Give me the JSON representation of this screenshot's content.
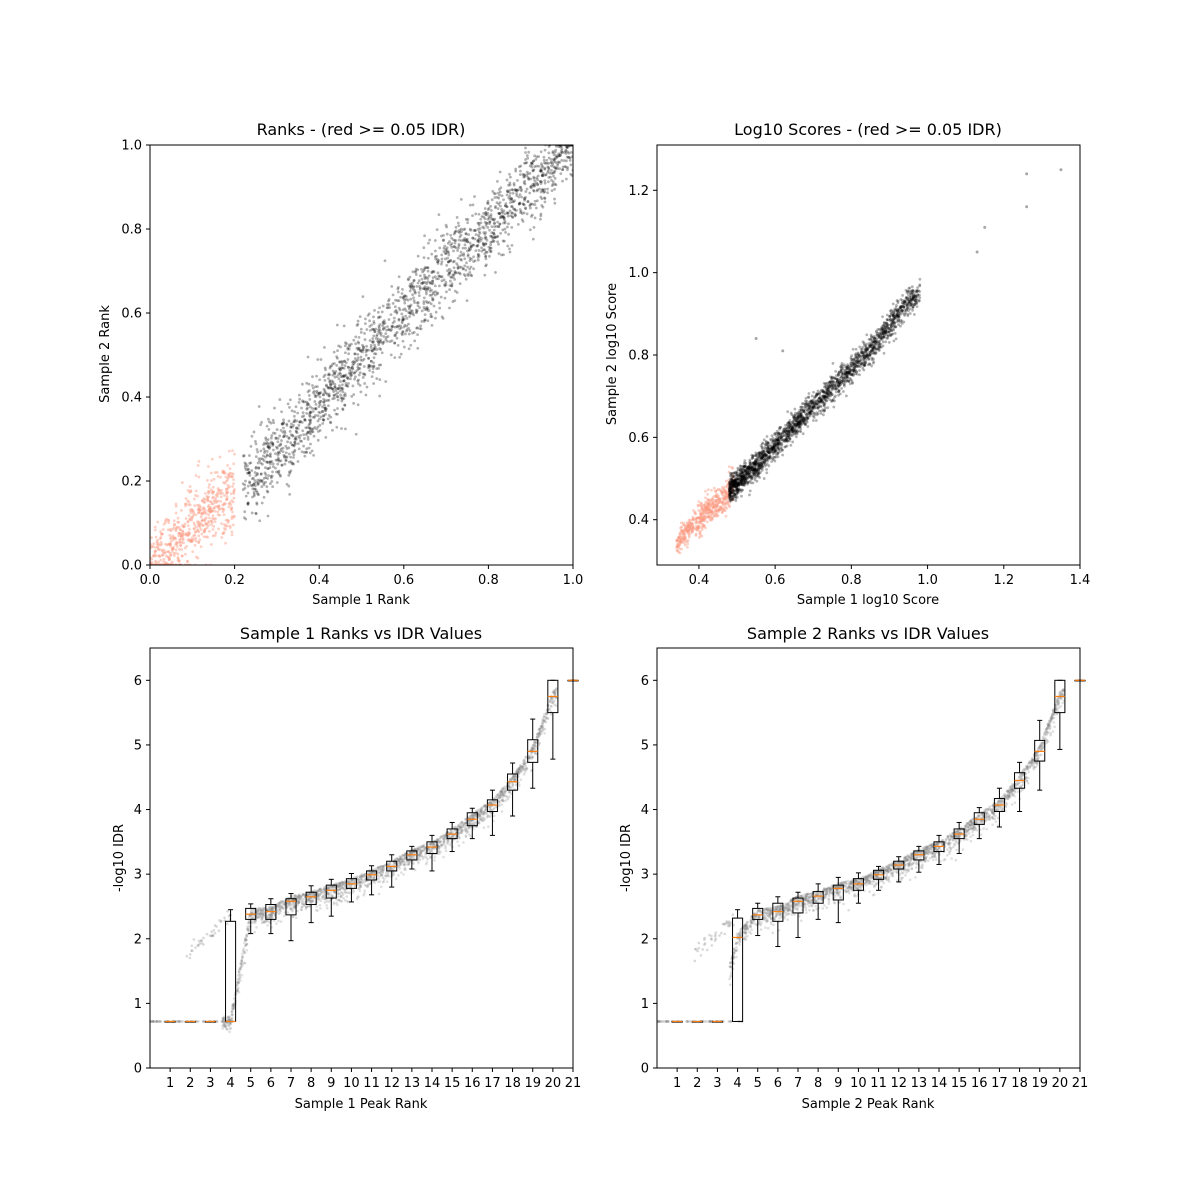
{
  "figure": {
    "background": "#ffffff",
    "colors": {
      "pass_points": "#000000",
      "fail_points": "#fb9a80",
      "box_median": "#ff7f0e",
      "box_stroke": "#000000",
      "idr_points": "#808080"
    }
  },
  "chart_data": [
    {
      "type": "scatter",
      "title": "Ranks - (red >= 0.05 IDR)",
      "xlabel": "Sample 1 Rank",
      "ylabel": "Sample 2 Rank",
      "xlim": [
        0.0,
        1.0
      ],
      "ylim": [
        0.0,
        1.0
      ],
      "xticks": [
        "0.0",
        "0.2",
        "0.4",
        "0.6",
        "0.8",
        "1.0"
      ],
      "yticks": [
        "0.0",
        "0.2",
        "0.4",
        "0.6",
        "0.8",
        "1.0"
      ],
      "grid": false,
      "series": [
        {
          "color": "#000000",
          "points": [
            [
              0.22,
              0.18
            ],
            [
              0.3,
              0.27
            ],
            [
              0.4,
              0.38
            ],
            [
              0.5,
              0.5
            ],
            [
              0.6,
              0.6
            ],
            [
              0.7,
              0.71
            ],
            [
              0.8,
              0.8
            ],
            [
              0.9,
              0.9
            ],
            [
              1.0,
              1.0
            ]
          ]
        },
        {
          "color": "#fb9a80",
          "points": [
            [
              0.0,
              0.0
            ],
            [
              0.05,
              0.04
            ],
            [
              0.1,
              0.1
            ],
            [
              0.15,
              0.14
            ],
            [
              0.2,
              0.17
            ]
          ]
        }
      ]
    },
    {
      "type": "scatter",
      "title": "Log10 Scores - (red >= 0.05 IDR)",
      "xlabel": "Sample 1 log10 Score",
      "ylabel": "Sample 2 log10 Score",
      "xlim": [
        0.29,
        1.4
      ],
      "ylim": [
        0.29,
        1.31
      ],
      "xticks": [
        "0.4",
        "0.6",
        "0.8",
        "1.0",
        "1.2",
        "1.4"
      ],
      "yticks": [
        "0.4",
        "0.6",
        "0.8",
        "1.0",
        "1.2"
      ],
      "grid": false,
      "series": [
        {
          "color": "#000000",
          "points": [
            [
              0.48,
              0.47
            ],
            [
              0.55,
              0.53
            ],
            [
              0.65,
              0.63
            ],
            [
              0.75,
              0.72
            ],
            [
              0.85,
              0.81
            ],
            [
              0.95,
              0.93
            ],
            [
              1.0,
              0.96
            ],
            [
              1.26,
              1.24
            ],
            [
              1.35,
              1.26
            ]
          ]
        },
        {
          "color": "#fb9a80",
          "points": [
            [
              0.34,
              0.34
            ],
            [
              0.38,
              0.38
            ],
            [
              0.42,
              0.42
            ],
            [
              0.46,
              0.45
            ],
            [
              0.49,
              0.48
            ]
          ]
        }
      ]
    },
    {
      "type": "box",
      "title": "Sample 1 Ranks vs IDR Values",
      "xlabel": "Sample 1 Peak Rank",
      "ylabel": "-log10 IDR",
      "xlim": [
        0,
        21
      ],
      "ylim": [
        0,
        6.5
      ],
      "xticks": [
        "1",
        "2",
        "3",
        "4",
        "5",
        "6",
        "7",
        "8",
        "9",
        "10",
        "11",
        "12",
        "13",
        "14",
        "15",
        "16",
        "17",
        "18",
        "19",
        "20",
        "21"
      ],
      "yticks": [
        "0",
        "1",
        "2",
        "3",
        "4",
        "5",
        "6"
      ],
      "grid": false,
      "boxes": [
        {
          "pos": 1,
          "whislo": 0.72,
          "q1": 0.72,
          "med": 0.72,
          "q3": 0.72,
          "whishi": 0.72
        },
        {
          "pos": 2,
          "whislo": 0.72,
          "q1": 0.72,
          "med": 0.72,
          "q3": 0.72,
          "whishi": 0.72
        },
        {
          "pos": 3,
          "whislo": 0.72,
          "q1": 0.72,
          "med": 0.72,
          "q3": 0.72,
          "whishi": 0.72
        },
        {
          "pos": 4,
          "whislo": 0.72,
          "q1": 0.72,
          "med": 0.72,
          "q3": 2.27,
          "whishi": 2.45
        },
        {
          "pos": 5,
          "whislo": 2.08,
          "q1": 2.3,
          "med": 2.38,
          "q3": 2.47,
          "whishi": 2.54
        },
        {
          "pos": 6,
          "whislo": 2.08,
          "q1": 2.3,
          "med": 2.42,
          "q3": 2.53,
          "whishi": 2.62
        },
        {
          "pos": 7,
          "whislo": 1.97,
          "q1": 2.37,
          "med": 2.58,
          "q3": 2.62,
          "whishi": 2.7
        },
        {
          "pos": 8,
          "whislo": 2.25,
          "q1": 2.53,
          "med": 2.65,
          "q3": 2.72,
          "whishi": 2.82
        },
        {
          "pos": 9,
          "whislo": 2.35,
          "q1": 2.63,
          "med": 2.75,
          "q3": 2.83,
          "whishi": 2.92
        },
        {
          "pos": 10,
          "whislo": 2.57,
          "q1": 2.78,
          "med": 2.85,
          "q3": 2.93,
          "whishi": 3.01
        },
        {
          "pos": 11,
          "whislo": 2.68,
          "q1": 2.91,
          "med": 2.99,
          "q3": 3.05,
          "whishi": 3.13
        },
        {
          "pos": 12,
          "whislo": 2.8,
          "q1": 3.05,
          "med": 3.12,
          "q3": 3.2,
          "whishi": 3.3
        },
        {
          "pos": 13,
          "whislo": 3.08,
          "q1": 3.22,
          "med": 3.3,
          "q3": 3.36,
          "whishi": 3.43
        },
        {
          "pos": 14,
          "whislo": 3.05,
          "q1": 3.32,
          "med": 3.42,
          "q3": 3.5,
          "whishi": 3.6
        },
        {
          "pos": 15,
          "whislo": 3.35,
          "q1": 3.55,
          "med": 3.62,
          "q3": 3.7,
          "whishi": 3.8
        },
        {
          "pos": 16,
          "whislo": 3.55,
          "q1": 3.75,
          "med": 3.85,
          "q3": 3.95,
          "whishi": 4.02
        },
        {
          "pos": 17,
          "whislo": 3.6,
          "q1": 3.97,
          "med": 4.07,
          "q3": 4.15,
          "whishi": 4.3
        },
        {
          "pos": 18,
          "whislo": 3.9,
          "q1": 4.3,
          "med": 4.43,
          "q3": 4.55,
          "whishi": 4.72
        },
        {
          "pos": 19,
          "whislo": 4.33,
          "q1": 4.73,
          "med": 4.9,
          "q3": 5.08,
          "whishi": 5.4
        },
        {
          "pos": 20,
          "whislo": 4.78,
          "q1": 5.5,
          "med": 5.75,
          "q3": 6.0,
          "whishi": 6.0
        },
        {
          "pos": 21,
          "whislo": 6.0,
          "q1": 6.0,
          "med": 6.0,
          "q3": 6.0,
          "whishi": 6.0
        }
      ],
      "background_points_color": "#808080"
    },
    {
      "type": "box",
      "title": "Sample 2 Ranks vs IDR Values",
      "xlabel": "Sample 2 Peak Rank",
      "ylabel": "-log10 IDR",
      "xlim": [
        0,
        21
      ],
      "ylim": [
        0,
        6.5
      ],
      "xticks": [
        "1",
        "2",
        "3",
        "4",
        "5",
        "6",
        "7",
        "8",
        "9",
        "10",
        "11",
        "12",
        "13",
        "14",
        "15",
        "16",
        "17",
        "18",
        "19",
        "20",
        "21"
      ],
      "yticks": [
        "0",
        "1",
        "2",
        "3",
        "4",
        "5",
        "6"
      ],
      "grid": false,
      "boxes": [
        {
          "pos": 1,
          "whislo": 0.72,
          "q1": 0.72,
          "med": 0.72,
          "q3": 0.72,
          "whishi": 0.72
        },
        {
          "pos": 2,
          "whislo": 0.72,
          "q1": 0.72,
          "med": 0.72,
          "q3": 0.72,
          "whishi": 0.72
        },
        {
          "pos": 3,
          "whislo": 0.72,
          "q1": 0.72,
          "med": 0.72,
          "q3": 0.72,
          "whishi": 0.72
        },
        {
          "pos": 4,
          "whislo": 0.72,
          "q1": 0.72,
          "med": 2.02,
          "q3": 2.32,
          "whishi": 2.45
        },
        {
          "pos": 5,
          "whislo": 2.05,
          "q1": 2.3,
          "med": 2.37,
          "q3": 2.47,
          "whishi": 2.55
        },
        {
          "pos": 6,
          "whislo": 1.88,
          "q1": 2.27,
          "med": 2.42,
          "q3": 2.55,
          "whishi": 2.65
        },
        {
          "pos": 7,
          "whislo": 2.02,
          "q1": 2.4,
          "med": 2.58,
          "q3": 2.63,
          "whishi": 2.72
        },
        {
          "pos": 8,
          "whislo": 2.3,
          "q1": 2.55,
          "med": 2.66,
          "q3": 2.73,
          "whishi": 2.85
        },
        {
          "pos": 9,
          "whislo": 2.25,
          "q1": 2.6,
          "med": 2.78,
          "q3": 2.83,
          "whishi": 2.95
        },
        {
          "pos": 10,
          "whislo": 2.55,
          "q1": 2.75,
          "med": 2.85,
          "q3": 2.93,
          "whishi": 3.02
        },
        {
          "pos": 11,
          "whislo": 2.75,
          "q1": 2.92,
          "med": 2.99,
          "q3": 3.06,
          "whishi": 3.12
        },
        {
          "pos": 12,
          "whislo": 2.88,
          "q1": 3.08,
          "med": 3.14,
          "q3": 3.2,
          "whishi": 3.27
        },
        {
          "pos": 13,
          "whislo": 3.03,
          "q1": 3.22,
          "med": 3.3,
          "q3": 3.36,
          "whishi": 3.43
        },
        {
          "pos": 14,
          "whislo": 3.15,
          "q1": 3.35,
          "med": 3.43,
          "q3": 3.5,
          "whishi": 3.6
        },
        {
          "pos": 15,
          "whislo": 3.32,
          "q1": 3.55,
          "med": 3.62,
          "q3": 3.7,
          "whishi": 3.8
        },
        {
          "pos": 16,
          "whislo": 3.55,
          "q1": 3.77,
          "med": 3.85,
          "q3": 3.95,
          "whishi": 4.03
        },
        {
          "pos": 17,
          "whislo": 3.73,
          "q1": 3.97,
          "med": 4.07,
          "q3": 4.17,
          "whishi": 4.33
        },
        {
          "pos": 18,
          "whislo": 3.97,
          "q1": 4.33,
          "med": 4.45,
          "q3": 4.57,
          "whishi": 4.73
        },
        {
          "pos": 19,
          "whislo": 4.3,
          "q1": 4.75,
          "med": 4.9,
          "q3": 5.07,
          "whishi": 5.38
        },
        {
          "pos": 20,
          "whislo": 4.93,
          "q1": 5.5,
          "med": 5.75,
          "q3": 6.0,
          "whishi": 6.0
        },
        {
          "pos": 21,
          "whislo": 6.0,
          "q1": 6.0,
          "med": 6.0,
          "q3": 6.0,
          "whishi": 6.0
        }
      ],
      "background_points_color": "#808080"
    }
  ]
}
